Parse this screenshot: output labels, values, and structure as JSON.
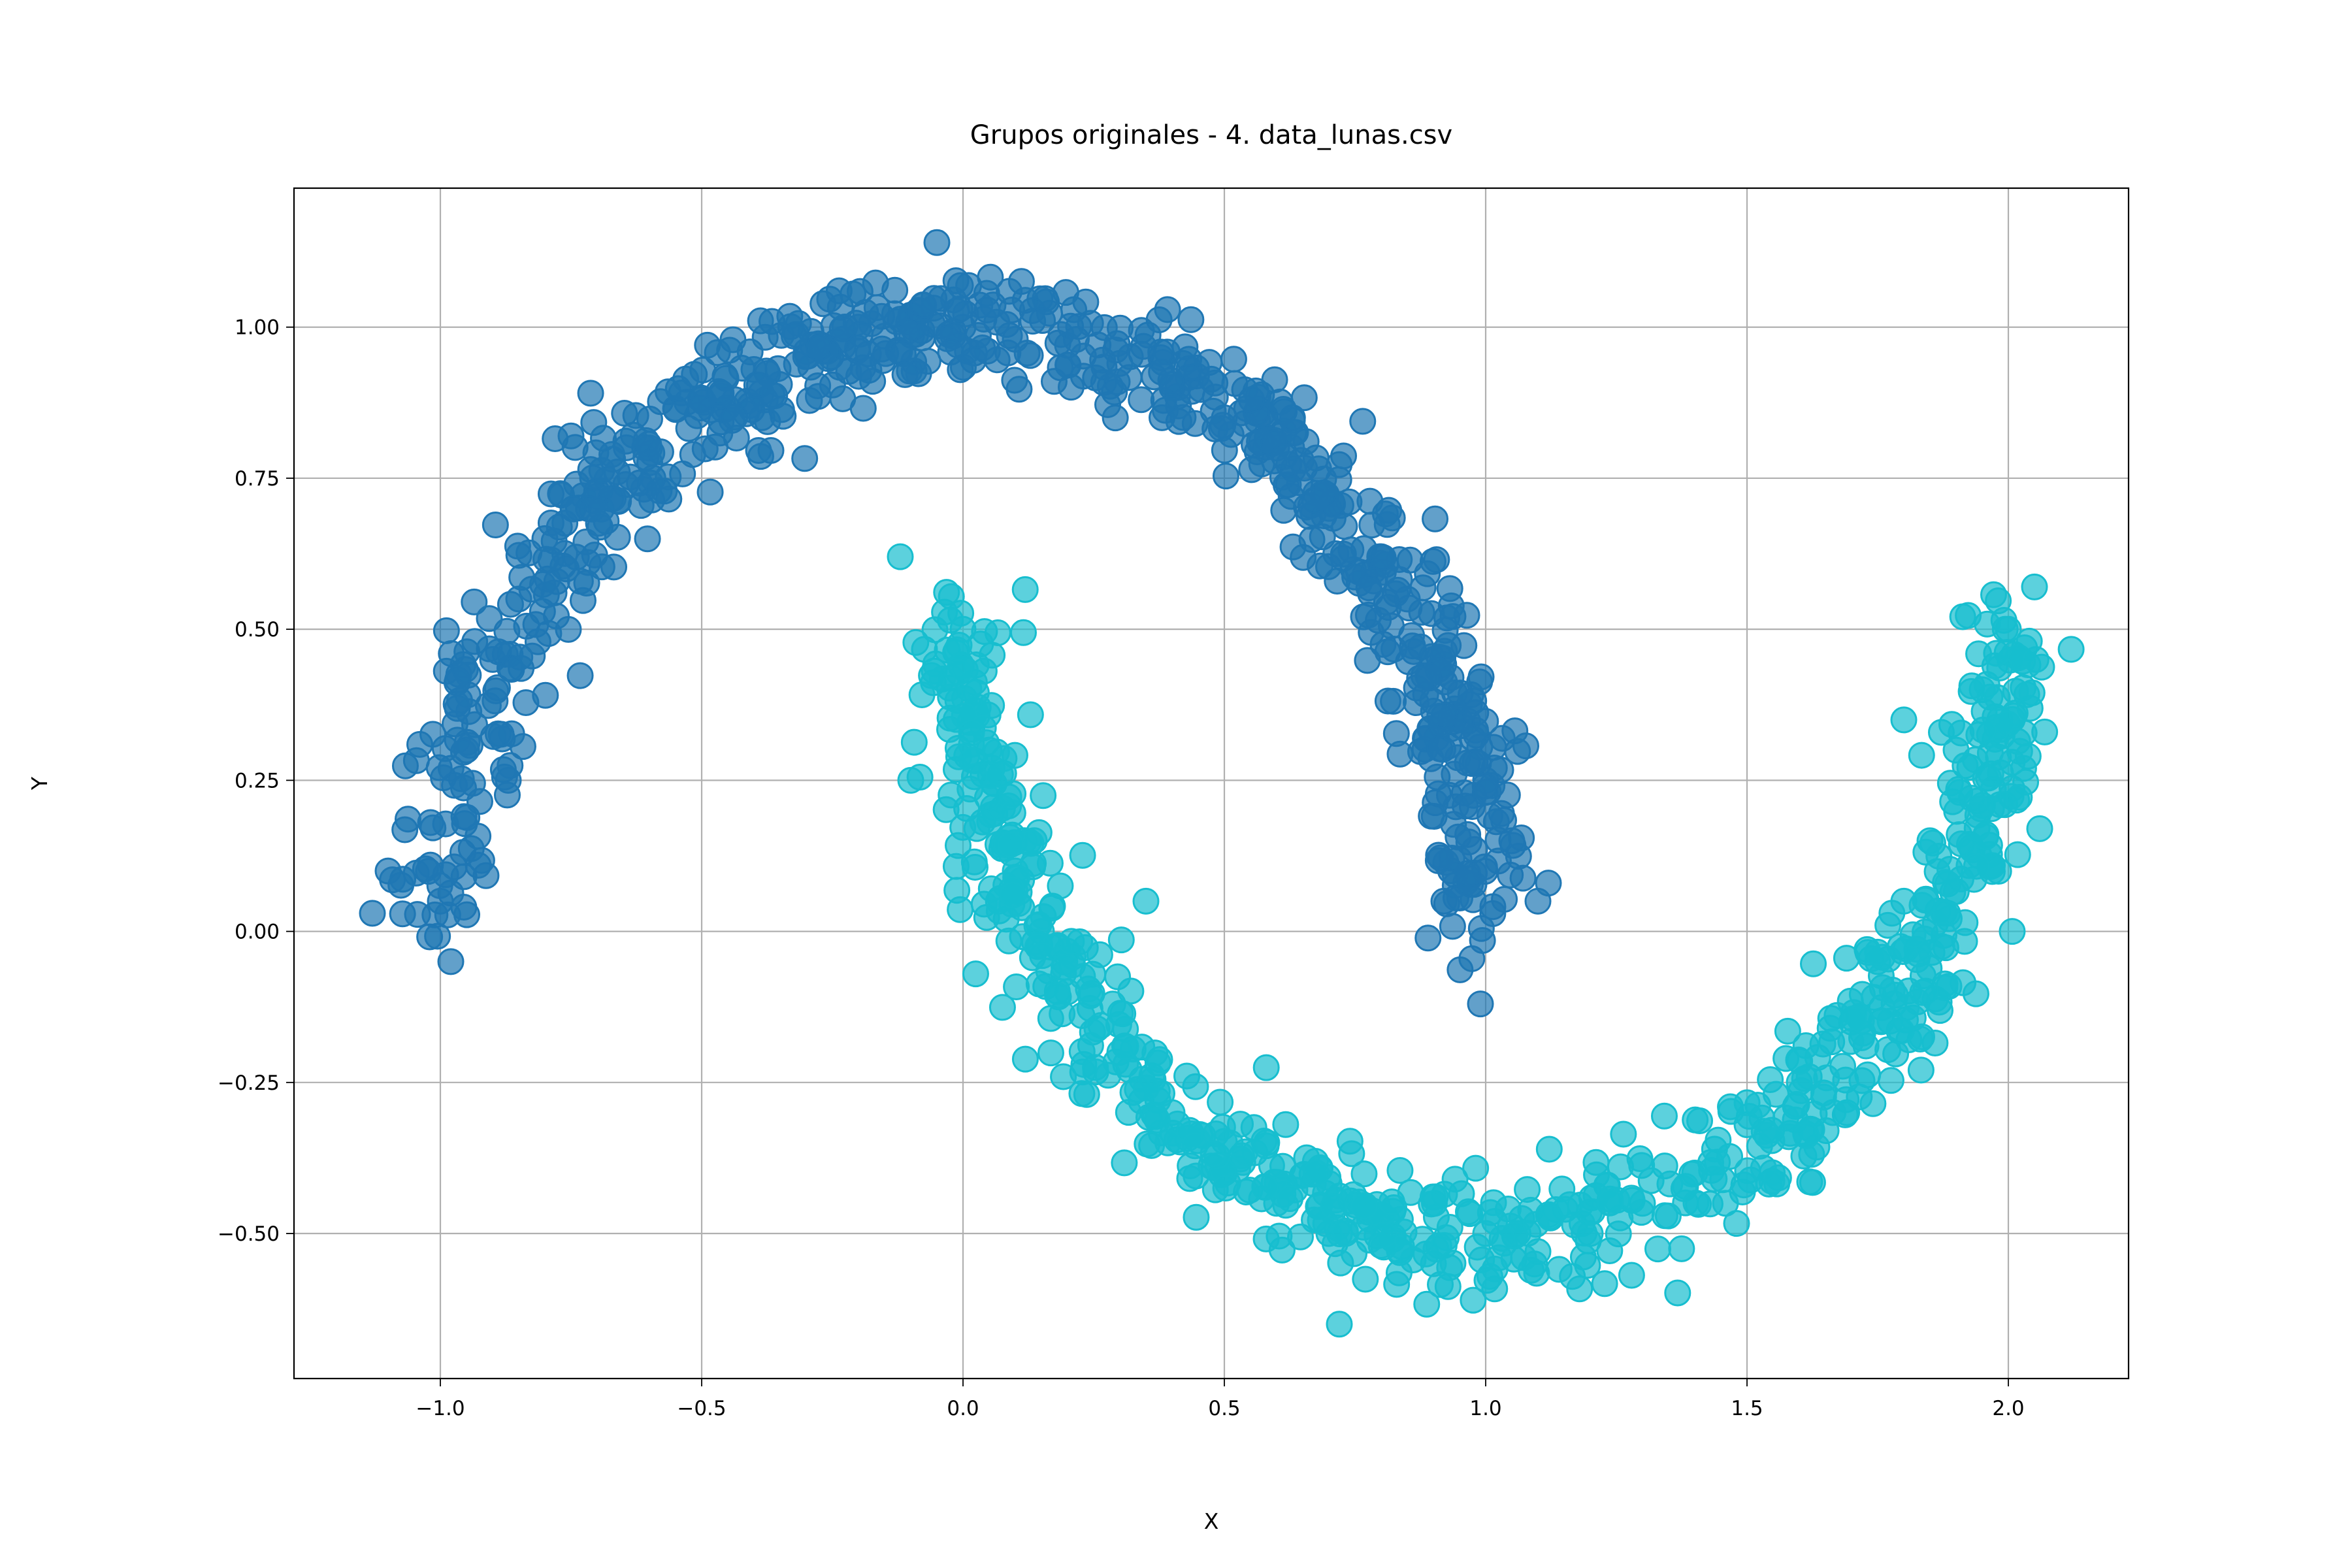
{
  "chart_data": {
    "type": "scatter",
    "title": "Grupos originales - 4. data_lunas.csv",
    "xlabel": "X",
    "ylabel": "Y",
    "xlim": [
      -1.28,
      2.23
    ],
    "ylim": [
      -0.74,
      1.23
    ],
    "grid": true,
    "legend": "none",
    "x_ticks": [
      -1.0,
      -0.5,
      0.0,
      0.5,
      1.0,
      1.5,
      2.0
    ],
    "x_tick_labels": [
      "−1.0",
      "−0.5",
      "0.0",
      "0.5",
      "1.0",
      "1.5",
      "2.0"
    ],
    "y_ticks": [
      1.0,
      0.75,
      0.5,
      0.25,
      0.0,
      -0.25,
      -0.5
    ],
    "y_tick_labels": [
      "1.00",
      "0.75",
      "0.50",
      "0.25",
      "0.00",
      "−0.25",
      "−0.50"
    ],
    "series": [
      {
        "color": "#1f77b4",
        "opacity": 0.7,
        "shape": "upper half-moon: x = cos(t), y = sin(t), t in [0, π], noise ≈ 0.05",
        "x": [
          -1.1,
          -1.0,
          -0.95,
          -0.9,
          -0.85,
          -0.8,
          -0.7,
          -0.6,
          -0.5,
          -0.4,
          -0.3,
          -0.2,
          -0.1,
          -0.05,
          0.0,
          0.1,
          0.2,
          0.3,
          0.4,
          0.5,
          0.6,
          0.7,
          0.8,
          0.85,
          0.9,
          0.95,
          1.0,
          1.05,
          1.1,
          -1.13,
          -0.98,
          -0.87,
          -0.75,
          0.99,
          0.92,
          1.12
        ],
        "y": [
          0.1,
          0.05,
          0.3,
          0.45,
          0.55,
          0.65,
          0.72,
          0.8,
          0.88,
          0.93,
          0.96,
          1.0,
          1.02,
          1.14,
          1.0,
          0.98,
          0.97,
          0.94,
          0.9,
          0.85,
          0.8,
          0.7,
          0.62,
          0.55,
          0.45,
          0.35,
          0.25,
          0.15,
          0.05,
          0.03,
          -0.05,
          0.25,
          0.82,
          -0.12,
          0.05,
          0.08
        ]
      },
      {
        "color": "#17becf",
        "opacity": 0.7,
        "shape": "lower half-moon: x = 1 − cos(t), y = 0.5 − sin(t), t in [0, π], noise ≈ 0.05",
        "x": [
          -0.12,
          0.0,
          0.05,
          0.1,
          0.15,
          0.2,
          0.3,
          0.4,
          0.5,
          0.6,
          0.7,
          0.8,
          0.9,
          1.0,
          1.1,
          1.2,
          1.3,
          1.4,
          1.5,
          1.6,
          1.7,
          1.75,
          1.8,
          1.85,
          1.9,
          1.95,
          2.0,
          2.05,
          0.35,
          0.72,
          -0.1,
          2.06,
          1.8
        ],
        "y": [
          0.62,
          0.5,
          0.3,
          0.1,
          0.0,
          -0.1,
          -0.2,
          -0.3,
          -0.4,
          -0.45,
          -0.5,
          -0.52,
          -0.55,
          -0.5,
          -0.53,
          -0.5,
          -0.45,
          -0.4,
          -0.32,
          -0.25,
          -0.15,
          -0.05,
          0.05,
          0.15,
          0.3,
          0.4,
          0.5,
          0.57,
          0.05,
          -0.65,
          0.25,
          0.17,
          0.35
        ]
      }
    ]
  }
}
